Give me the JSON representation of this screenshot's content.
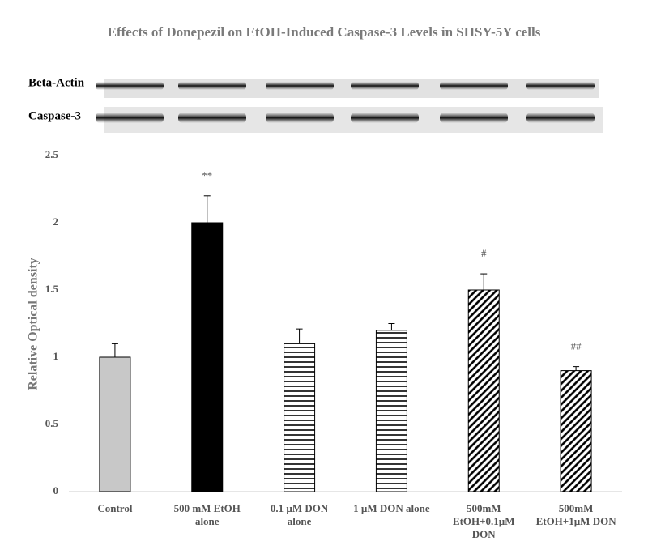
{
  "chart_data": {
    "type": "bar",
    "title": "Effects of Donepezil on EtOH-Induced  Caspase-3 Levels in SHSY-5Y cells",
    "blot_labels": [
      "Beta-Actin",
      "Caspase-3"
    ],
    "y_label": "Relative Optical density",
    "categories": [
      "Control",
      "500 mM EtOH alone",
      "0.1 µM DON alone",
      "1 µM DON alone",
      "500mM EtOH+0.1µM DON",
      "500mM EtOH+1µM DON"
    ],
    "values": [
      1.0,
      2.0,
      1.1,
      1.2,
      1.5,
      0.9
    ],
    "errors": [
      0.1,
      0.2,
      0.11,
      0.05,
      0.12,
      0.03
    ],
    "annotations": [
      null,
      "**",
      null,
      null,
      "#",
      "##"
    ],
    "fills": [
      "solid",
      "solid",
      "horizontal",
      "horizontal",
      "diagonal",
      "diagonal"
    ],
    "colors": [
      "#c8c8c8",
      "#000000",
      "#000000",
      "#000000",
      "#000000",
      "#000000"
    ],
    "ylim": [
      0,
      2.5
    ],
    "yticks": [
      0,
      0.5,
      1,
      1.5,
      2,
      2.5
    ],
    "grid": false
  }
}
